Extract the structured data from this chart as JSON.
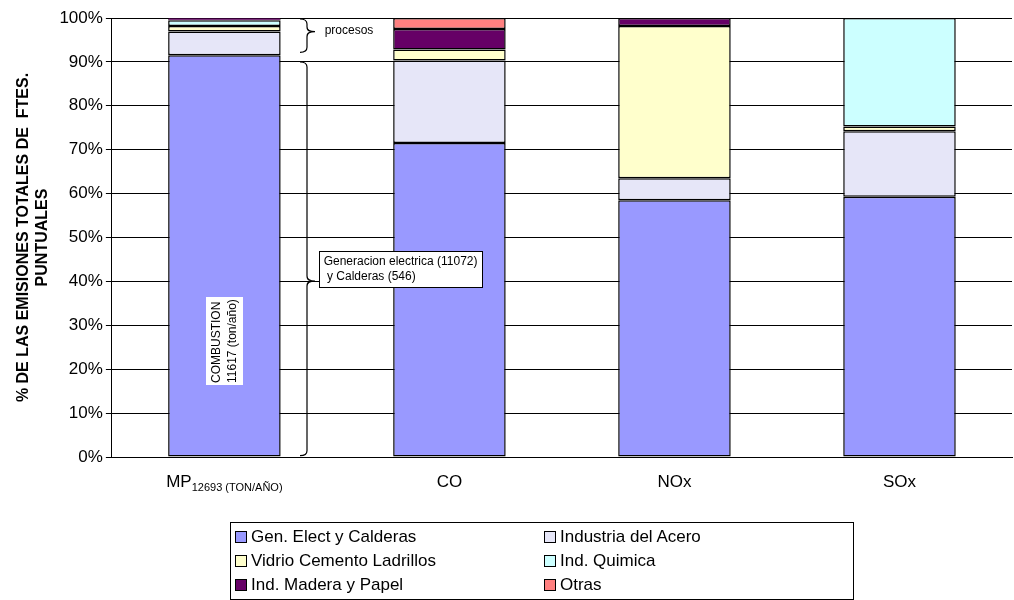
{
  "chart_data": {
    "type": "bar",
    "stacked": true,
    "ylabel": "% DE LAS EMISIONES TOTALES DE  FTES.\nPUNTUALES",
    "categories": [
      "MP$_{12693 (TON/AÑO)}$",
      "CO",
      "NOx",
      "SOx"
    ],
    "series": [
      {
        "name": "Gen. Elect y Calderas",
        "color": "#9999ff",
        "values": [
          91.5,
          71.5,
          58.5,
          59.3
        ]
      },
      {
        "name": "Industria del Acero",
        "color": "#e6e6f8",
        "values": [
          5.4,
          18.8,
          5.0,
          14.9
        ]
      },
      {
        "name": "Vidrio Cemento Ladrillos",
        "color": "#ffffcc",
        "values": [
          1.3,
          2.5,
          34.7,
          1.1
        ]
      },
      {
        "name": "Ind. Quimica",
        "color": "#ccffff",
        "values": [
          1.3,
          0,
          0,
          24.7
        ]
      },
      {
        "name": "Ind. Madera y Papel",
        "color": "#660066",
        "values": [
          0.5,
          4.7,
          1.8,
          0
        ]
      },
      {
        "name": "Otras",
        "color": "#ff8080",
        "values": [
          0,
          2.5,
          0,
          0
        ]
      }
    ],
    "ylim": [
      0,
      100
    ],
    "yticks": [
      {
        "value": 0,
        "label": "0%"
      },
      {
        "value": 10,
        "label": "10%"
      },
      {
        "value": 20,
        "label": "20%"
      },
      {
        "value": 30,
        "label": "30%"
      },
      {
        "value": 40,
        "label": "40%"
      },
      {
        "value": 50,
        "label": "50%"
      },
      {
        "value": 60,
        "label": "60%"
      },
      {
        "value": 70,
        "label": "70%"
      },
      {
        "value": 80,
        "label": "80%"
      },
      {
        "value": 90,
        "label": "90%"
      },
      {
        "value": 100,
        "label": "100%"
      }
    ],
    "grid": "y",
    "legend": "bottom",
    "annotations": [
      "procesos",
      "COMBUSTION\n11617 (ton/año)",
      "Generacion electrica (11072)\n y Calderas (546)"
    ]
  }
}
